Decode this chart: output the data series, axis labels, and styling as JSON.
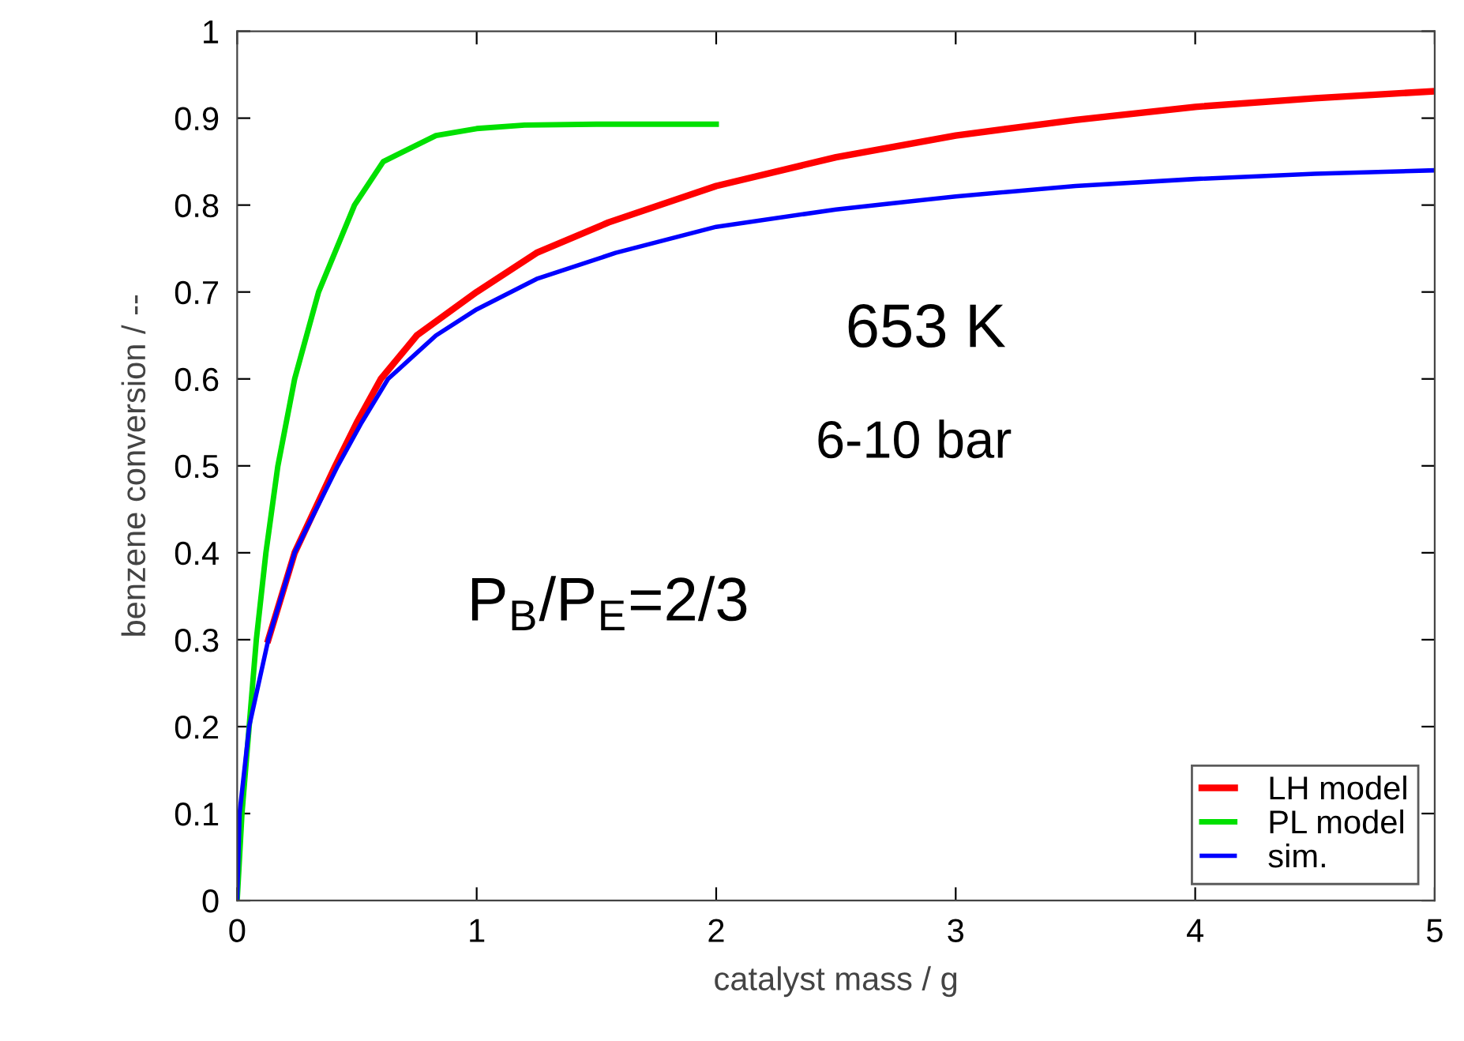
{
  "chart_data": {
    "type": "line",
    "xlabel": "catalyst mass / g",
    "ylabel": "benzene conversion / --",
    "xlim": [
      0,
      5
    ],
    "ylim": [
      0,
      1
    ],
    "xticks": [
      0,
      1,
      2,
      3,
      4,
      5
    ],
    "yticks": [
      0,
      0.1,
      0.2,
      0.3,
      0.4,
      0.5,
      0.6,
      0.7,
      0.8,
      0.9,
      1
    ],
    "grid": false,
    "legend": "bottom right",
    "marker": "none",
    "line_style": "solid",
    "annotations": [
      "653 K",
      "6-10 bar",
      "P$_{B}$/P$_{E}$=2/3"
    ],
    "series": [
      {
        "name": "LH model",
        "color": "#ff0000",
        "x": [
          0.13,
          0.24,
          0.41,
          0.5,
          0.6,
          0.75,
          1.0,
          1.25,
          1.55,
          2,
          2.5,
          3,
          3.5,
          4,
          4.5,
          5
        ],
        "values": [
          0.3,
          0.4,
          0.5,
          0.55,
          0.6,
          0.65,
          0.7,
          0.745,
          0.78,
          0.822,
          0.855,
          0.88,
          0.898,
          0.913,
          0.923,
          0.931
        ]
      },
      {
        "name": "PL model",
        "color": "#00e000",
        "x": [
          0,
          0.02,
          0.05,
          0.08,
          0.12,
          0.17,
          0.24,
          0.34,
          0.49,
          0.61,
          0.83,
          1.0,
          1.2,
          1.5,
          2
        ],
        "values": [
          0,
          0.1,
          0.2,
          0.3,
          0.4,
          0.5,
          0.6,
          0.7,
          0.8,
          0.85,
          0.88,
          0.888,
          0.892,
          0.893,
          0.893
        ]
      },
      {
        "name": "sim.",
        "color": "#0000ff",
        "x": [
          0,
          0.01,
          0.05,
          0.13,
          0.24,
          0.42,
          0.52,
          0.63,
          0.83,
          1.0,
          1.25,
          1.58,
          2,
          2.5,
          3,
          3.5,
          4,
          4.5,
          5
        ],
        "values": [
          0,
          0.1,
          0.2,
          0.3,
          0.4,
          0.5,
          0.55,
          0.6,
          0.65,
          0.68,
          0.715,
          0.745,
          0.775,
          0.795,
          0.81,
          0.822,
          0.83,
          0.836,
          0.84
        ]
      }
    ]
  }
}
